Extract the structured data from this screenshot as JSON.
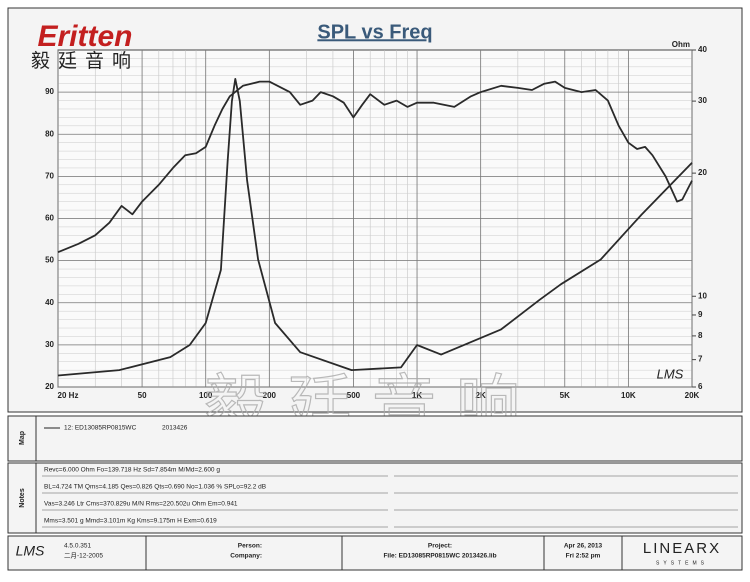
{
  "header": {
    "brand": "Eritten",
    "brand_cn": "毅廷音响"
  },
  "watermark": "毅廷音响",
  "plot_logo": "LMS",
  "chart_data": {
    "type": "line",
    "title": "SPL vs Freq",
    "xlog": true,
    "xlim": [
      20,
      20000
    ],
    "xticks": [
      {
        "value": 20,
        "label": "20 Hz"
      },
      50,
      100,
      200,
      500,
      {
        "value": 1000,
        "label": "1K"
      },
      {
        "value": 2000,
        "label": "2K"
      },
      {
        "value": 5000,
        "label": "5K"
      },
      {
        "value": 10000,
        "label": "10K"
      },
      {
        "value": 20000,
        "label": "20K"
      }
    ],
    "ylim": [
      20,
      100
    ],
    "yticks": [
      20,
      30,
      40,
      50,
      60,
      70,
      80,
      90
    ],
    "y2label": "Ohm",
    "y2log": true,
    "y2lim": [
      6,
      40
    ],
    "y2ticks": [
      6,
      7,
      8,
      9,
      10,
      20,
      30,
      40
    ],
    "grid": true,
    "series": [
      {
        "name": "SPL",
        "color": "#2a2a2a",
        "x": [
          20,
          25,
          30,
          35,
          40,
          45,
          50,
          60,
          70,
          80,
          90,
          100,
          110,
          120,
          130,
          150,
          180,
          200,
          250,
          280,
          320,
          350,
          400,
          450,
          500,
          550,
          600,
          700,
          800,
          900,
          1000,
          1200,
          1500,
          1800,
          2000,
          2500,
          3000,
          3500,
          4000,
          4500,
          5000,
          6000,
          7000,
          8000,
          9000,
          10000,
          11000,
          12000,
          13000,
          15000,
          17000,
          18000,
          20000
        ],
        "values": [
          52,
          54,
          56,
          59,
          63,
          61,
          64,
          68,
          72,
          75,
          75.5,
          77,
          82,
          86,
          89,
          91.5,
          92.5,
          92.5,
          90,
          87,
          88,
          90,
          89,
          87.5,
          84,
          87,
          89.5,
          87,
          88,
          86.5,
          87.5,
          87.5,
          86.5,
          89,
          90,
          91.5,
          91,
          90.5,
          92,
          92.5,
          91,
          90,
          90.5,
          88,
          82,
          78,
          76.5,
          77,
          75,
          70,
          64,
          64.5,
          69
        ]
      },
      {
        "name": "Impedance",
        "color": "#2a2a2a",
        "axis": "y2",
        "x": [
          20,
          39,
          68,
          84,
          100,
          118,
          127,
          133,
          138,
          145,
          157,
          177,
          213,
          280,
          490,
          840,
          1000,
          1300,
          2500,
          3800,
          4800,
          7400,
          11500,
          20000
        ],
        "values": [
          6.4,
          6.6,
          7.1,
          7.6,
          8.6,
          11.6,
          21.5,
          30,
          34,
          30,
          19.2,
          12.3,
          8.6,
          7.3,
          6.6,
          6.7,
          7.6,
          7.2,
          8.3,
          9.8,
          10.7,
          12.3,
          15.8,
          21.2
        ]
      }
    ]
  },
  "map": {
    "label": "Map",
    "entry": "12: ED13085RP0815WC",
    "entry_date": "2013426"
  },
  "notes": {
    "label": "Notes",
    "lines": [
      "Revc=6.000 Ohm  Fo=139.718 Hz  Sd=7.854m M/Md=2.600 g",
      "BL=4.724 TM  Qms=4.185  Qes=0.826  Qts=0.690  No=1.036 %  SPLo=92.2 dB",
      "Vas=3.246 Ltr  Cms=370.829u M/N  Rms=220.502u Ohm  Em=0.941",
      "Mms=3.501 g  Mmd=3.101m Kg  Kms=9.175m H  Exm=0.619"
    ]
  },
  "footer": {
    "logo": "LMS",
    "version": "4.5.0.351",
    "build_date": "二月-12-2005",
    "person": "Person:",
    "company": "Company:",
    "project": "Project:",
    "file": "File: ED13085RP0815WC  2013426.lib",
    "date": "Apr 26, 2013",
    "time": "Fri  2:52 pm",
    "vendor": "LINEARX",
    "vendor_sub": "SYSTEMS"
  }
}
